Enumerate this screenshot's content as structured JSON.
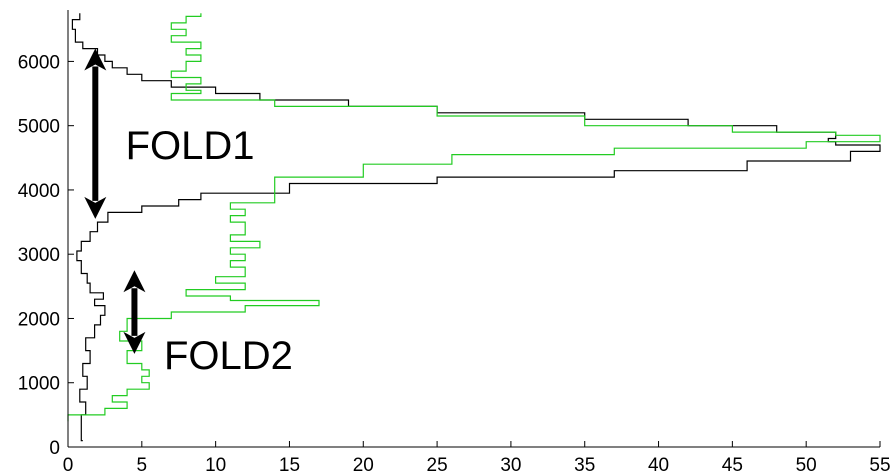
{
  "chart_data": {
    "type": "line",
    "title": "",
    "xlabel": "",
    "ylabel": "",
    "xlim": [
      0,
      55
    ],
    "ylim": [
      0,
      6800
    ],
    "x_ticks": [
      0,
      5,
      10,
      15,
      20,
      25,
      30,
      35,
      40,
      45,
      50,
      55
    ],
    "x_tick_labels": [
      "0",
      "5",
      "10",
      "15",
      "20",
      "25",
      "30",
      "35",
      "40",
      "45",
      "50",
      "55"
    ],
    "y_ticks": [
      0,
      1000,
      2000,
      3000,
      4000,
      5000,
      6000
    ],
    "y_tick_labels": [
      "0",
      "1000",
      "2000",
      "3000",
      "4000",
      "5000",
      "6000"
    ],
    "grid": false,
    "legend": "none",
    "series": [
      {
        "color": "#000000",
        "points": [
          [
            1.0,
            100
          ],
          [
            0.9,
            300
          ],
          [
            0.9,
            500
          ],
          [
            1.2,
            700
          ],
          [
            0.8,
            900
          ],
          [
            1.3,
            1100
          ],
          [
            1.0,
            1300
          ],
          [
            1.5,
            1500
          ],
          [
            1.2,
            1700
          ],
          [
            1.8,
            1900
          ],
          [
            2.2,
            2050
          ],
          [
            2.5,
            2200
          ],
          [
            1.8,
            2300
          ],
          [
            2.4,
            2400
          ],
          [
            1.5,
            2550
          ],
          [
            1.3,
            2700
          ],
          [
            0.9,
            2900
          ],
          [
            0.6,
            3050
          ],
          [
            0.9,
            3200
          ],
          [
            1.5,
            3350
          ],
          [
            2.0,
            3500
          ],
          [
            2.7,
            3650
          ],
          [
            5.0,
            3750
          ],
          [
            7.5,
            3850
          ],
          [
            9.0,
            3950
          ],
          [
            15.0,
            4100
          ],
          [
            25.0,
            4200
          ],
          [
            37.0,
            4300
          ],
          [
            46.0,
            4450
          ],
          [
            53.0,
            4600
          ],
          [
            55.0,
            4700
          ],
          [
            52.0,
            4750
          ],
          [
            51.5,
            4800
          ],
          [
            52.0,
            4900
          ],
          [
            48.0,
            5000
          ],
          [
            42.0,
            5100
          ],
          [
            35.0,
            5200
          ],
          [
            25.0,
            5300
          ],
          [
            19.0,
            5400
          ],
          [
            13.0,
            5500
          ],
          [
            10.0,
            5600
          ],
          [
            7.0,
            5700
          ],
          [
            5.0,
            5800
          ],
          [
            4.0,
            5900
          ],
          [
            3.0,
            6000
          ],
          [
            2.5,
            6100
          ],
          [
            2.0,
            6200
          ],
          [
            1.0,
            6300
          ],
          [
            0.5,
            6500
          ],
          [
            0.3,
            6650
          ],
          [
            0.8,
            6750
          ]
        ]
      },
      {
        "color": "#22cc22",
        "points": [
          [
            0,
            400
          ],
          [
            0,
            500
          ],
          [
            2.5,
            600
          ],
          [
            4.0,
            700
          ],
          [
            3.0,
            800
          ],
          [
            4.0,
            900
          ],
          [
            5.5,
            1000
          ],
          [
            5.0,
            1100
          ],
          [
            5.5,
            1200
          ],
          [
            5.0,
            1300
          ],
          [
            4.0,
            1500
          ],
          [
            5.0,
            1650
          ],
          [
            3.5,
            1800
          ],
          [
            4.0,
            2000
          ],
          [
            7.0,
            2100
          ],
          [
            12.0,
            2200
          ],
          [
            17.0,
            2280
          ],
          [
            11.0,
            2350
          ],
          [
            8.0,
            2450
          ],
          [
            12.0,
            2550
          ],
          [
            10.0,
            2650
          ],
          [
            12.0,
            2800
          ],
          [
            11.0,
            2900
          ],
          [
            12.0,
            3000
          ],
          [
            11.0,
            3100
          ],
          [
            13.0,
            3200
          ],
          [
            11.0,
            3300
          ],
          [
            12.0,
            3400
          ],
          [
            12.0,
            3500
          ],
          [
            11.0,
            3600
          ],
          [
            12.0,
            3700
          ],
          [
            11.0,
            3800
          ],
          [
            14.0,
            3950
          ],
          [
            14.0,
            4100
          ],
          [
            14.0,
            4200
          ],
          [
            20.0,
            4400
          ],
          [
            26.0,
            4550
          ],
          [
            37.0,
            4650
          ],
          [
            50.0,
            4750
          ],
          [
            55.0,
            4850
          ],
          [
            52.0,
            4900
          ],
          [
            45.0,
            5000
          ],
          [
            35.0,
            5150
          ],
          [
            25.0,
            5300
          ],
          [
            14.0,
            5400
          ],
          [
            7.0,
            5500
          ],
          [
            9.0,
            5550
          ],
          [
            8.0,
            5650
          ],
          [
            9.0,
            5750
          ],
          [
            7.0,
            5850
          ],
          [
            8.0,
            6000
          ],
          [
            9.0,
            6100
          ],
          [
            8.0,
            6200
          ],
          [
            9.0,
            6300
          ],
          [
            7.0,
            6400
          ],
          [
            8.0,
            6500
          ],
          [
            7.0,
            6600
          ],
          [
            8.0,
            6700
          ],
          [
            9.0,
            6750
          ]
        ]
      }
    ],
    "annotations": [
      {
        "text": "FOLD1",
        "x": 3.9,
        "y": 4700
      },
      {
        "text": "FOLD2",
        "x": 6.5,
        "y": 1430
      }
    ],
    "arrows": [
      {
        "x": 1.85,
        "y_from": 3550,
        "y_to": 6200
      },
      {
        "x": 4.5,
        "y_from": 1450,
        "y_to": 2750
      }
    ]
  }
}
